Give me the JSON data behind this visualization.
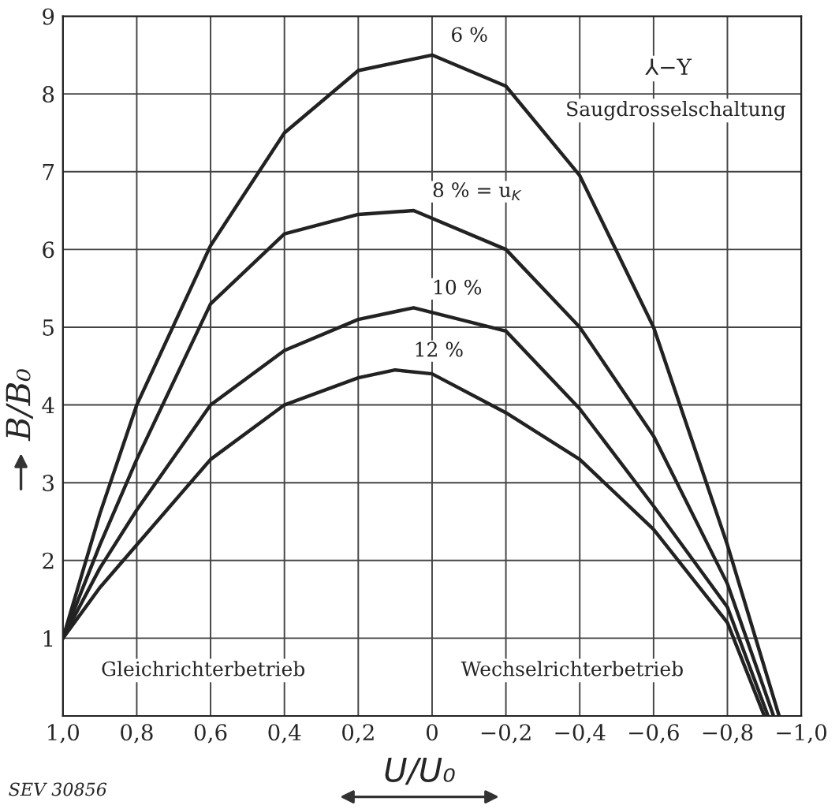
{
  "chart_data": {
    "type": "line",
    "xlabel": "U/U₀",
    "ylabel": "B/B₀",
    "xlim": [
      1.0,
      -1.0
    ],
    "ylim": [
      0,
      9
    ],
    "xticks": [
      {
        "value": 1.0,
        "label": "1,0"
      },
      {
        "value": 0.8,
        "label": "0,8"
      },
      {
        "value": 0.6,
        "label": "0,6"
      },
      {
        "value": 0.4,
        "label": "0,4"
      },
      {
        "value": 0.2,
        "label": "0,2"
      },
      {
        "value": 0,
        "label": "0"
      },
      {
        "value": -0.2,
        "label": "−0,2"
      },
      {
        "value": -0.4,
        "label": "−0,4"
      },
      {
        "value": -0.6,
        "label": "−0,6"
      },
      {
        "value": -0.8,
        "label": "−0,8"
      },
      {
        "value": -1.0,
        "label": "−1,0"
      }
    ],
    "yticks": [
      1,
      2,
      3,
      4,
      5,
      6,
      7,
      8,
      9
    ],
    "grid": true,
    "legend": false,
    "marker": "none",
    "line_style": "solid",
    "series": [
      {
        "name": "6 %",
        "color": "#222222",
        "x": [
          1.0,
          0.9,
          0.8,
          0.6,
          0.4,
          0.2,
          0.0,
          -0.2,
          -0.4,
          -0.6,
          -0.8,
          -0.94
        ],
        "values": [
          1,
          2.6,
          4.0,
          6.05,
          7.5,
          8.3,
          8.5,
          8.1,
          6.95,
          5.0,
          2.2,
          0
        ]
      },
      {
        "name": "8 % = u$_{K}$",
        "color": "#222222",
        "x": [
          1.0,
          0.9,
          0.8,
          0.6,
          0.4,
          0.2,
          0.05,
          -0.2,
          -0.4,
          -0.6,
          -0.8,
          -0.925
        ],
        "values": [
          1,
          2.2,
          3.3,
          5.3,
          6.2,
          6.45,
          6.5,
          6.0,
          5.0,
          3.6,
          1.7,
          0
        ]
      },
      {
        "name": "10 %",
        "color": "#222222",
        "x": [
          1.0,
          0.9,
          0.8,
          0.6,
          0.4,
          0.2,
          0.05,
          -0.2,
          -0.4,
          -0.6,
          -0.8,
          -0.91
        ],
        "values": [
          1,
          1.9,
          2.65,
          4.0,
          4.7,
          5.1,
          5.25,
          4.95,
          3.95,
          2.7,
          1.4,
          0
        ]
      },
      {
        "name": "12 %",
        "color": "#222222",
        "x": [
          1.0,
          0.9,
          0.8,
          0.6,
          0.4,
          0.2,
          0.1,
          0.0,
          -0.2,
          -0.4,
          -0.6,
          -0.8,
          -0.9
        ],
        "values": [
          1,
          1.65,
          2.2,
          3.3,
          4.0,
          4.35,
          4.45,
          4.4,
          3.9,
          3.3,
          2.4,
          1.2,
          0
        ]
      }
    ],
    "annotations": [
      "⅄−Y",
      "Saugdrosselschaltung",
      "Gleichrichterbetrieb",
      "Wechselrichterbetrieb",
      "SEV 30856"
    ]
  }
}
